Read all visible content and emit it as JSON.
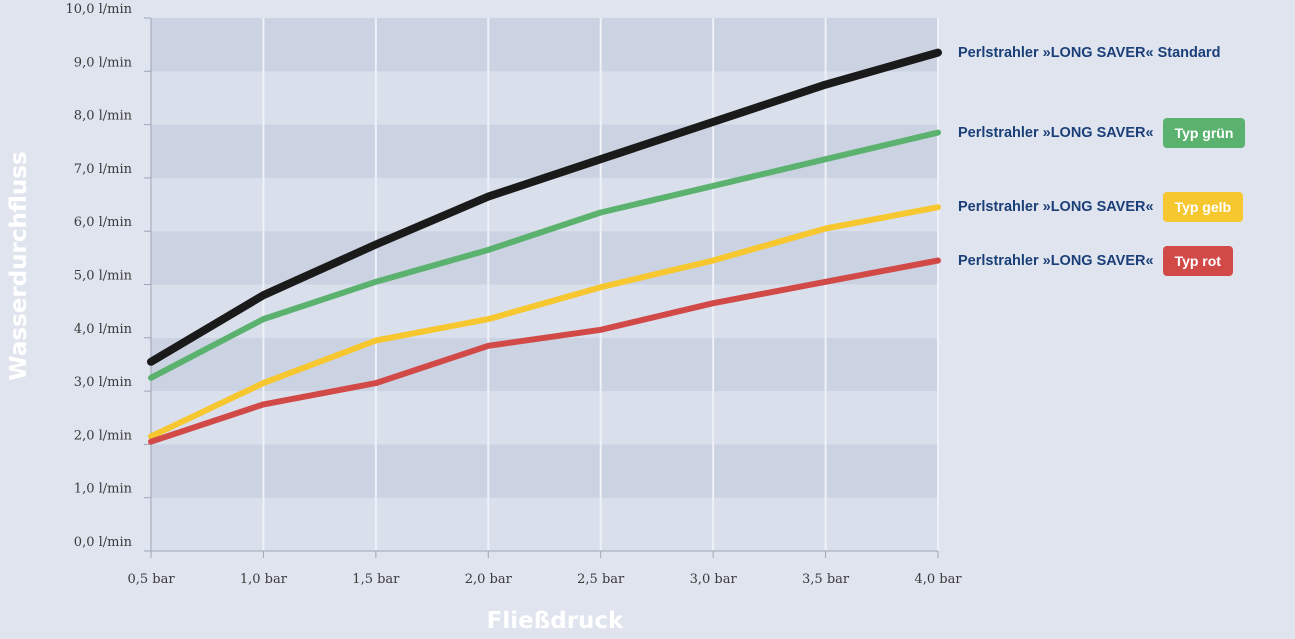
{
  "chart_data": {
    "type": "line",
    "xlabel": "Fließdruck",
    "ylabel": "Wasserdurchfluss",
    "x": [
      0.5,
      1.0,
      1.5,
      2.0,
      2.5,
      3.0,
      3.5,
      4.0
    ],
    "x_tick_labels": [
      "0,5 bar",
      "1,0 bar",
      "1,5 bar",
      "2,0 bar",
      "2,5 bar",
      "3,0 bar",
      "3,5 bar",
      "4,0 bar"
    ],
    "y_tick_labels": [
      "0,0 l/min",
      "1,0 l/min",
      "2,0 l/min",
      "3,0 l/min",
      "4,0 l/min",
      "5,0 l/min",
      "6,0 l/min",
      "7,0 l/min",
      "8,0 l/min",
      "9,0 l/min",
      "10,0 l/min"
    ],
    "ylim": [
      0,
      10
    ],
    "grid": true,
    "legend_position": "right",
    "series": [
      {
        "name": "Perlstrahler »LONG SAVER« Standard",
        "badge": "",
        "color": "#1a1a1a",
        "badge_color": "",
        "values": [
          3.55,
          4.8,
          5.75,
          6.65,
          7.35,
          8.05,
          8.75,
          9.35
        ]
      },
      {
        "name": "Perlstrahler »LONG SAVER«",
        "badge": "Typ grün",
        "color": "#5bb26e",
        "badge_color": "#5bb26e",
        "values": [
          3.25,
          4.35,
          5.05,
          5.65,
          6.35,
          6.85,
          7.35,
          7.85
        ]
      },
      {
        "name": "Perlstrahler »LONG SAVER«",
        "badge": "Typ gelb",
        "color": "#f7c72f",
        "badge_color": "#f7c72f",
        "values": [
          2.15,
          3.15,
          3.95,
          4.35,
          4.95,
          5.45,
          6.05,
          6.45
        ]
      },
      {
        "name": "Perlstrahler »LONG SAVER«",
        "badge": "Typ rot",
        "color": "#d24a48",
        "badge_color": "#d24a48",
        "values": [
          2.05,
          2.75,
          3.15,
          3.85,
          4.15,
          4.65,
          5.05,
          5.45
        ]
      }
    ]
  }
}
